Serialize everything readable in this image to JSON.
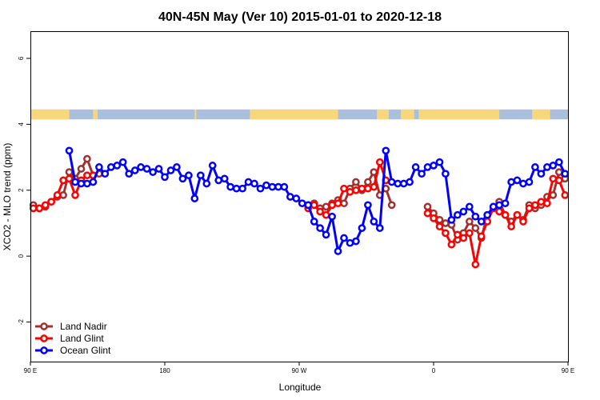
{
  "chart_data": {
    "type": "line",
    "title": "40N-45N May (Ver 10)   2015-01-01 to 2020-12-18",
    "xlabel": "Longitude",
    "ylabel": "XCO2 - MLO trend (ppm)",
    "xlim": [
      90,
      450
    ],
    "ylim": [
      -3.2,
      6.8
    ],
    "xticks": [
      {
        "value": 90,
        "label": "90 E"
      },
      {
        "value": 180,
        "label": "180"
      },
      {
        "value": 270,
        "label": "90 W"
      },
      {
        "value": 360,
        "label": "0"
      },
      {
        "value": 450,
        "label": "90 E"
      },
      {
        "value": 540,
        "label": "180"
      }
    ],
    "yticks": [
      {
        "value": -2,
        "label": "-2"
      },
      {
        "value": 0,
        "label": "0"
      },
      {
        "value": 2,
        "label": "2"
      },
      {
        "value": 4,
        "label": "4"
      },
      {
        "value": 6,
        "label": "6"
      }
    ],
    "grid": false,
    "legend_position": "bottom-left",
    "land_ocean_strip": {
      "y_range": [
        4.15,
        4.45
      ],
      "land_color": "#f7d77a",
      "ocean_color": "#a9bfdc",
      "land_segments": [
        [
          90,
          116
        ],
        [
          132,
          135
        ],
        [
          200,
          200
        ],
        [
          237,
          296
        ],
        [
          322,
          330
        ],
        [
          338,
          347
        ],
        [
          350,
          404
        ],
        [
          426,
          438
        ]
      ]
    },
    "series": [
      {
        "name": "Land Nadir",
        "color": "#a0312f",
        "x": [
          92,
          96,
          100,
          104,
          108,
          112,
          116,
          120,
          124,
          128,
          132,
          136,
          276,
          280,
          284,
          288,
          292,
          296,
          300,
          304,
          308,
          312,
          316,
          320,
          324,
          328,
          332,
          356,
          360,
          364,
          368,
          372,
          376,
          380,
          384,
          388,
          392,
          396,
          400,
          404,
          408,
          412,
          416,
          420,
          424,
          428,
          432,
          436,
          440,
          444,
          448
        ],
        "y": [
          1.55,
          1.45,
          1.5,
          1.65,
          1.8,
          1.85,
          2.55,
          2.35,
          2.65,
          2.95,
          2.45,
          2.5,
          1.55,
          1.6,
          1.45,
          1.5,
          1.6,
          1.7,
          1.6,
          2.05,
          2.25,
          2.0,
          2.25,
          2.55,
          1.85,
          2.05,
          1.55,
          1.5,
          1.3,
          1.1,
          1.0,
          0.95,
          0.5,
          0.7,
          1.05,
          0.85,
          0.55,
          1.25,
          1.5,
          1.65,
          1.25,
          1.05,
          1.25,
          1.1,
          1.55,
          1.45,
          1.55,
          1.8,
          1.85,
          2.55,
          2.35
        ]
      },
      {
        "name": "Land Glint",
        "color": "#ff0000",
        "x": [
          92,
          96,
          100,
          104,
          108,
          112,
          116,
          120,
          124,
          128,
          132,
          276,
          280,
          284,
          288,
          292,
          296,
          300,
          304,
          308,
          312,
          316,
          320,
          324,
          328,
          356,
          360,
          364,
          368,
          372,
          376,
          380,
          384,
          388,
          392,
          396,
          400,
          404,
          408,
          412,
          416,
          420,
          424,
          428,
          432,
          436,
          440,
          444,
          448
        ],
        "y": [
          1.45,
          1.45,
          1.55,
          1.65,
          1.85,
          2.3,
          2.35,
          1.85,
          2.3,
          2.45,
          2.45,
          1.45,
          1.55,
          1.35,
          1.25,
          1.55,
          1.6,
          2.05,
          1.95,
          2.0,
          2.05,
          2.05,
          2.1,
          2.85,
          2.3,
          1.3,
          1.15,
          0.9,
          0.7,
          0.35,
          0.65,
          0.55,
          0.7,
          -0.25,
          0.6,
          1.05,
          1.45,
          1.35,
          1.25,
          0.9,
          1.25,
          1.05,
          1.45,
          1.55,
          1.65,
          1.6,
          2.35,
          2.3,
          1.85
        ]
      },
      {
        "name": "Ocean Glint",
        "color": "#0000ff",
        "x": [
          116,
          120,
          124,
          128,
          132,
          136,
          140,
          144,
          148,
          152,
          156,
          160,
          164,
          168,
          172,
          176,
          180,
          184,
          188,
          192,
          196,
          200,
          204,
          208,
          212,
          216,
          220,
          224,
          228,
          232,
          236,
          240,
          244,
          248,
          252,
          256,
          260,
          264,
          268,
          272,
          276,
          280,
          284,
          288,
          292,
          296,
          300,
          304,
          308,
          312,
          316,
          320,
          324,
          328,
          332,
          336,
          340,
          344,
          348,
          352,
          356,
          360,
          364,
          368,
          372,
          376,
          380,
          384,
          388,
          392,
          396,
          400,
          404,
          408,
          412,
          416,
          420,
          424,
          428,
          432,
          436,
          440,
          444,
          448
        ],
        "y": [
          3.2,
          2.25,
          2.2,
          2.2,
          2.25,
          2.7,
          2.5,
          2.7,
          2.75,
          2.85,
          2.5,
          2.6,
          2.7,
          2.65,
          2.55,
          2.65,
          2.4,
          2.6,
          2.7,
          2.35,
          2.45,
          1.75,
          2.45,
          2.2,
          2.75,
          2.3,
          2.35,
          2.1,
          2.05,
          2.05,
          2.25,
          2.2,
          2.05,
          2.15,
          2.1,
          2.1,
          2.1,
          1.8,
          1.75,
          1.6,
          1.55,
          1.05,
          0.85,
          0.65,
          1.2,
          0.15,
          0.55,
          0.4,
          0.45,
          0.85,
          1.55,
          1.05,
          0.85,
          3.2,
          2.25,
          2.2,
          2.2,
          2.25,
          2.7,
          2.5,
          2.7,
          2.75,
          2.85,
          2.5,
          1.1,
          1.25,
          1.35,
          1.5,
          1.2,
          1.05,
          1.25,
          1.5,
          1.55,
          1.6,
          2.25,
          2.3,
          2.2,
          2.25,
          2.7,
          2.5,
          2.7,
          2.75,
          2.85,
          2.5
        ]
      }
    ]
  }
}
